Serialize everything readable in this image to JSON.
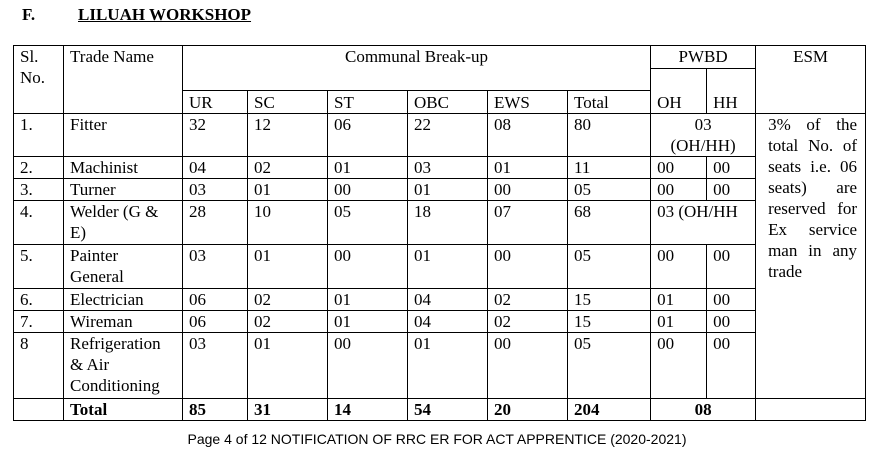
{
  "heading": {
    "section": "F.",
    "title": "LILUAH WORKSHOP"
  },
  "table": {
    "headers": {
      "sl_no": "Sl. No.",
      "trade_name": "Trade Name",
      "communal": "Communal Break-up",
      "pwbd": "PWBD",
      "esm": "ESM",
      "communal_columns": [
        "UR",
        "SC",
        "ST",
        "OBC",
        "EWS",
        "Total"
      ],
      "pwbd_columns": [
        "OH",
        "HH"
      ]
    },
    "rows": [
      {
        "sl": "1.",
        "trade": "Fitter",
        "values": [
          "32",
          "12",
          "06",
          "22",
          "08",
          "80"
        ],
        "pwbd": "03 (OH/HH)"
      },
      {
        "sl": "2.",
        "trade": "Machinist",
        "values": [
          "04",
          "02",
          "01",
          "03",
          "01",
          "11"
        ],
        "pwbd_oh": "00",
        "pwbd_hh": "00"
      },
      {
        "sl": "3.",
        "trade": "Turner",
        "values": [
          "03",
          "01",
          "00",
          "01",
          "00",
          "05"
        ],
        "pwbd_oh": "00",
        "pwbd_hh": "00"
      },
      {
        "sl": "4.",
        "trade": "Welder (G & E)",
        "values": [
          "28",
          "10",
          "05",
          "18",
          "07",
          "68"
        ],
        "pwbd": "03 (OH/HH"
      },
      {
        "sl": "5.",
        "trade": "Painter General",
        "values": [
          "03",
          "01",
          "00",
          "01",
          "00",
          "05"
        ],
        "pwbd_oh": "00",
        "pwbd_hh": "00"
      },
      {
        "sl": "6.",
        "trade": "Electrician",
        "values": [
          "06",
          "02",
          "01",
          "04",
          "02",
          "15"
        ],
        "pwbd_oh": "01",
        "pwbd_hh": "00"
      },
      {
        "sl": "7.",
        "trade": "Wireman",
        "values": [
          "06",
          "02",
          "01",
          "04",
          "02",
          "15"
        ],
        "pwbd_oh": "01",
        "pwbd_hh": "00"
      },
      {
        "sl": "8",
        "trade": "Refrigeration & Air Conditioning",
        "values": [
          "03",
          "01",
          "00",
          "01",
          "00",
          "05"
        ],
        "pwbd_oh": "00",
        "pwbd_hh": "00"
      }
    ],
    "esm_note": "3% of the total No. of seats i.e. 06 seats) are reserved for Ex service man in any trade",
    "total": {
      "label": "Total",
      "values": [
        "85",
        "31",
        "14",
        "54",
        "20",
        "204"
      ],
      "pwbd": "08"
    }
  },
  "footer": "Page 4 of 12 NOTIFICATION OF RRC ER FOR ACT APPRENTICE (2020-2021)"
}
